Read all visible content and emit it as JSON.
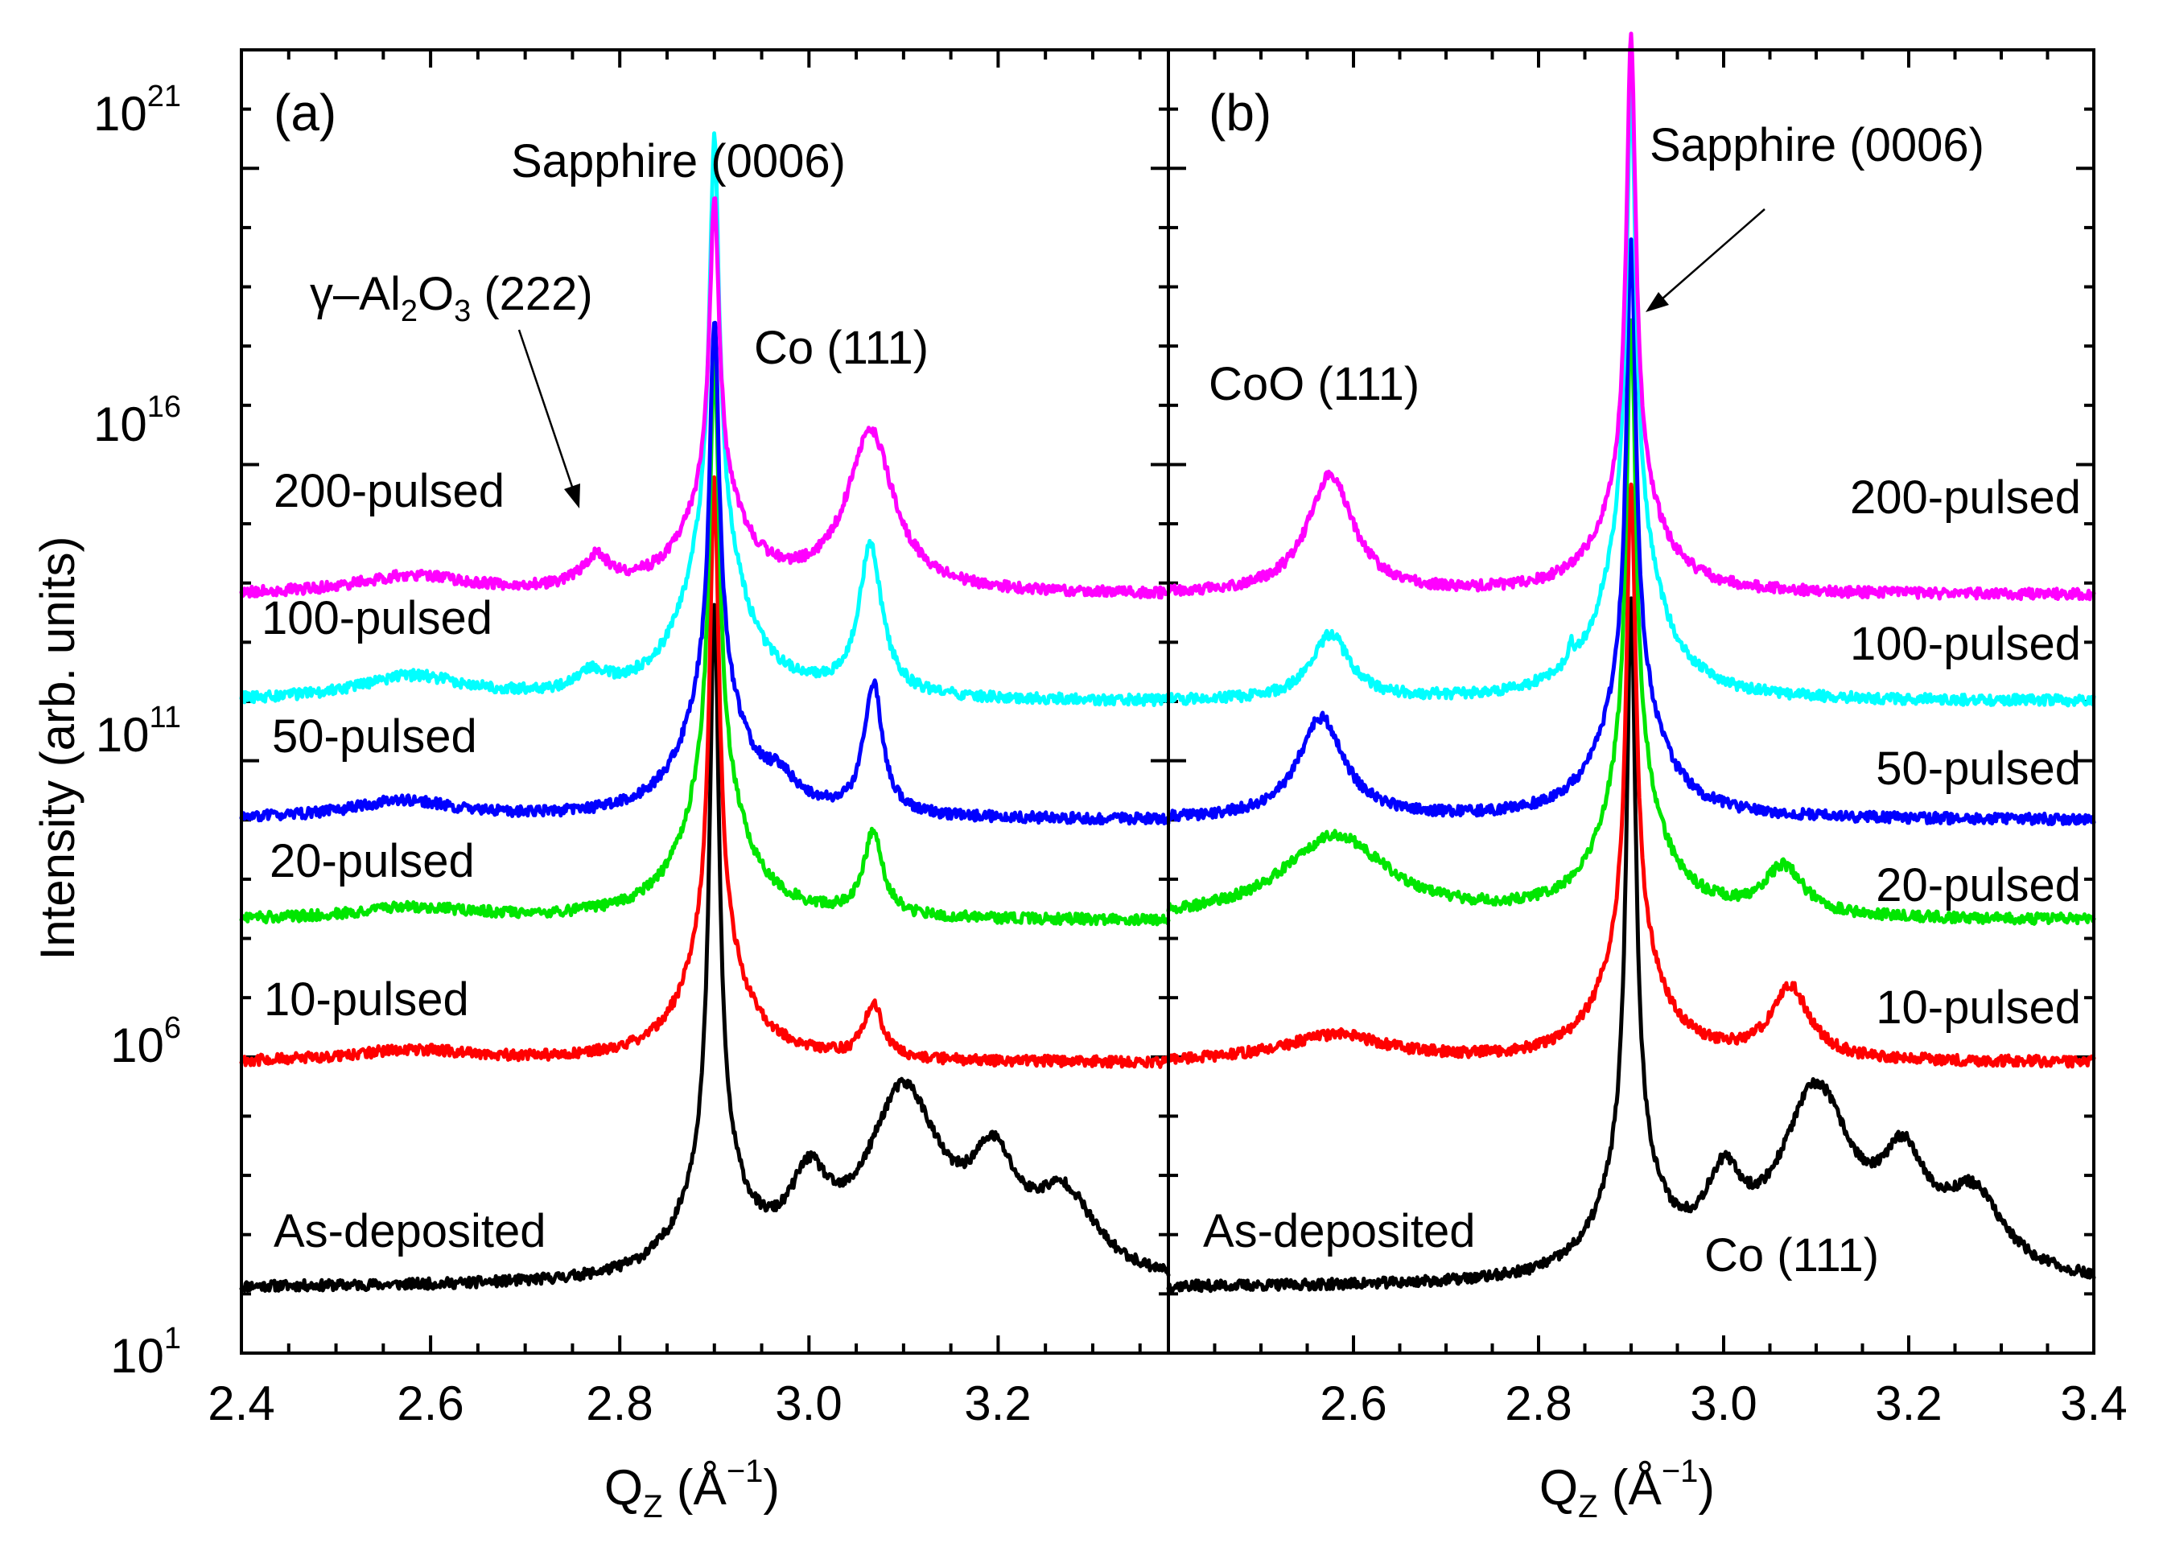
{
  "chart_data": {
    "type": "line",
    "yscale": "log",
    "ylabel": "Intensity (arb. units)",
    "xlabel": {
      "main": "Q",
      "sub": "Z",
      "unit": " (Å",
      "sup": "−1",
      "close": ")"
    },
    "ylim_log10": [
      1,
      23
    ],
    "y_ticks": [
      {
        "base": "10",
        "exp": "21",
        "log": 21
      },
      {
        "base": "10",
        "exp": "16",
        "log": 16
      },
      {
        "base": "10",
        "exp": "11",
        "log": 11
      },
      {
        "base": "10",
        "exp": "6",
        "log": 6
      },
      {
        "base": "10",
        "exp": "1",
        "log": 1
      }
    ],
    "panels": [
      {
        "id": "a",
        "label": "(a)",
        "xlim": [
          2.4,
          3.38
        ],
        "x_ticks": [
          "2.4",
          "2.6",
          "2.8",
          "3.0",
          "3.2"
        ],
        "annotations": {
          "sapphire": "Sapphire (0006)",
          "gamma_prefix": "γ–Al",
          "gamma_sub1": "2",
          "gamma_mid": "O",
          "gamma_sub2": "3",
          "gamma_suffix": " (222)",
          "co": "Co (111)"
        },
        "series": [
          {
            "name": "As-deposited",
            "color": "#000000",
            "base_log": 2.1,
            "peaks": [
              [
                2.9,
                9.2,
                0.006
              ],
              [
                2.9,
                2.1,
                0.035
              ],
              [
                3.0,
                1.3,
                0.025
              ],
              [
                3.1,
                3.1,
                0.048
              ],
              [
                3.195,
                1.6,
                0.03
              ],
              [
                3.27,
                1.3,
                0.04
              ]
            ]
          },
          {
            "name": "10-pulsed",
            "color": "#ff0000",
            "base_log": 5.9,
            "peaks": [
              [
                2.9,
                7.6,
                0.006
              ],
              [
                2.9,
                2.2,
                0.035
              ],
              [
                3.068,
                0.9,
                0.012
              ],
              [
                2.58,
                0.2,
                0.08
              ]
            ]
          },
          {
            "name": "20-pulsed",
            "color": "#00e600",
            "base_log": 8.3,
            "peaks": [
              [
                2.9,
                7.0,
                0.006
              ],
              [
                2.9,
                2.6,
                0.035
              ],
              [
                3.068,
                1.4,
                0.012
              ],
              [
                2.58,
                0.2,
                0.08
              ]
            ]
          },
          {
            "name": "50-pulsed",
            "color": "#0000ff",
            "base_log": 10.0,
            "peaks": [
              [
                2.9,
                6.0,
                0.006
              ],
              [
                2.9,
                2.4,
                0.035
              ],
              [
                3.068,
                2.2,
                0.012
              ],
              [
                2.97,
                0.4,
                0.02
              ],
              [
                2.57,
                0.3,
                0.07
              ]
            ]
          },
          {
            "name": "100-pulsed",
            "color": "#00ffff",
            "base_log": 12.0,
            "peaks": [
              [
                2.9,
                6.5,
                0.006
              ],
              [
                2.9,
                3.0,
                0.035
              ],
              [
                3.065,
                2.5,
                0.015
              ],
              [
                2.77,
                0.3,
                0.02
              ],
              [
                2.58,
                0.4,
                0.07
              ]
            ]
          },
          {
            "name": "200-pulsed",
            "color": "#ff00ff",
            "base_log": 13.8,
            "peaks": [
              [
                2.9,
                4.8,
                0.006
              ],
              [
                2.9,
                1.8,
                0.035
              ],
              [
                3.065,
                2.7,
                0.03
              ],
              [
                2.775,
                0.5,
                0.018
              ],
              [
                2.58,
                0.3,
                0.07
              ]
            ]
          }
        ]
      },
      {
        "id": "b",
        "label": "(b)",
        "xlim": [
          2.4,
          3.4
        ],
        "x_ticks": [
          "2.6",
          "2.8",
          "3.0",
          "3.2",
          "3.4"
        ],
        "annotations": {
          "sapphire": "Sapphire (0006)",
          "coo": "CoO (111)",
          "co": "Co (111)"
        },
        "series": [
          {
            "name": "As-deposited",
            "color": "#000000",
            "base_log": 2.1,
            "peaks": [
              [
                2.9,
                9.2,
                0.006
              ],
              [
                2.9,
                2.1,
                0.035
              ],
              [
                3.0,
                1.3,
                0.025
              ],
              [
                3.1,
                3.1,
                0.048
              ],
              [
                3.195,
                1.6,
                0.03
              ],
              [
                3.27,
                1.3,
                0.04
              ]
            ]
          },
          {
            "name": "10-pulsed",
            "color": "#ff0000",
            "base_log": 5.9,
            "peaks": [
              [
                2.9,
                7.6,
                0.006
              ],
              [
                2.9,
                2.2,
                0.035
              ],
              [
                3.072,
                1.2,
                0.025
              ],
              [
                2.58,
                0.45,
                0.07
              ]
            ]
          },
          {
            "name": "20-pulsed",
            "color": "#00e600",
            "base_log": 8.3,
            "peaks": [
              [
                2.9,
                7.5,
                0.006
              ],
              [
                2.9,
                2.6,
                0.035
              ],
              [
                3.065,
                0.8,
                0.025
              ],
              [
                2.58,
                1.4,
                0.07
              ]
            ]
          },
          {
            "name": "50-pulsed",
            "color": "#0000ff",
            "base_log": 10.0,
            "peaks": [
              [
                2.9,
                7.4,
                0.006
              ],
              [
                2.9,
                2.4,
                0.035
              ],
              [
                2.565,
                1.7,
                0.03
              ]
            ]
          },
          {
            "name": "100-pulsed",
            "color": "#00ffff",
            "base_log": 12.0,
            "peaks": [
              [
                2.9,
                7.3,
                0.006
              ],
              [
                2.9,
                3.0,
                0.035
              ],
              [
                2.575,
                1.1,
                0.025
              ],
              [
                2.835,
                0.3,
                0.003
              ]
            ]
          },
          {
            "name": "200-pulsed",
            "color": "#ff00ff",
            "base_log": 13.8,
            "peaks": [
              [
                2.9,
                7.4,
                0.006
              ],
              [
                2.9,
                2.0,
                0.035
              ],
              [
                2.575,
                2.0,
                0.03
              ]
            ]
          }
        ]
      }
    ]
  }
}
